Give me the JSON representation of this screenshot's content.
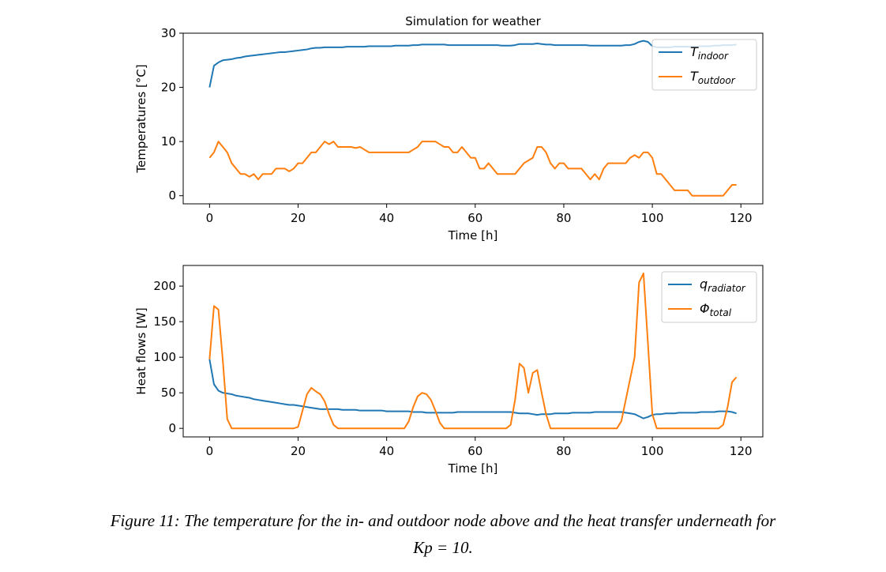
{
  "chart_data": [
    {
      "type": "line",
      "title": "Simulation for weather",
      "xlabel": "Time [h]",
      "ylabel": "Temperatures [°C]",
      "x": [
        0,
        1,
        2,
        3,
        4,
        5,
        6,
        7,
        8,
        9,
        10,
        11,
        12,
        13,
        14,
        15,
        16,
        17,
        18,
        19,
        20,
        21,
        22,
        23,
        24,
        25,
        26,
        27,
        28,
        29,
        30,
        31,
        32,
        33,
        34,
        35,
        36,
        37,
        38,
        39,
        40,
        41,
        42,
        43,
        44,
        45,
        46,
        47,
        48,
        49,
        50,
        51,
        52,
        53,
        54,
        55,
        56,
        57,
        58,
        59,
        60,
        61,
        62,
        63,
        64,
        65,
        66,
        67,
        68,
        69,
        70,
        71,
        72,
        73,
        74,
        75,
        76,
        77,
        78,
        79,
        80,
        81,
        82,
        83,
        84,
        85,
        86,
        87,
        88,
        89,
        90,
        91,
        92,
        93,
        94,
        95,
        96,
        97,
        98,
        99,
        100,
        101,
        102,
        103,
        104,
        105,
        106,
        107,
        108,
        109,
        110,
        111,
        112,
        113,
        114,
        115,
        116,
        117,
        118,
        119
      ],
      "series": [
        {
          "name": "T",
          "subscript": "indoor",
          "color": "#1f77b4",
          "values": [
            20,
            24,
            24.6,
            25,
            25.1,
            25.2,
            25.4,
            25.5,
            25.7,
            25.8,
            25.9,
            26,
            26.1,
            26.2,
            26.3,
            26.4,
            26.5,
            26.5,
            26.6,
            26.7,
            26.8,
            26.9,
            27,
            27.2,
            27.3,
            27.3,
            27.4,
            27.4,
            27.4,
            27.4,
            27.4,
            27.5,
            27.5,
            27.5,
            27.5,
            27.5,
            27.6,
            27.6,
            27.6,
            27.6,
            27.6,
            27.6,
            27.7,
            27.7,
            27.7,
            27.7,
            27.8,
            27.8,
            27.9,
            27.9,
            27.9,
            27.9,
            27.9,
            27.9,
            27.8,
            27.8,
            27.8,
            27.8,
            27.8,
            27.8,
            27.8,
            27.8,
            27.8,
            27.8,
            27.8,
            27.8,
            27.7,
            27.7,
            27.7,
            27.8,
            28,
            28,
            28,
            28,
            28.1,
            28,
            27.9,
            27.9,
            27.8,
            27.8,
            27.8,
            27.8,
            27.8,
            27.8,
            27.8,
            27.8,
            27.7,
            27.7,
            27.7,
            27.7,
            27.7,
            27.7,
            27.7,
            27.7,
            27.8,
            27.8,
            28,
            28.4,
            28.6,
            28.4,
            27.6,
            27.4,
            27.4,
            27.4,
            27.4,
            27.5,
            27.5,
            27.5,
            27.5,
            27.5,
            27.5,
            27.6,
            27.6,
            27.6,
            27.7,
            27.7,
            27.8,
            27.8,
            27.8,
            27.9
          ]
        },
        {
          "name": "T",
          "subscript": "outdoor",
          "color": "#ff7f0e",
          "values": [
            7,
            8,
            10,
            9,
            8,
            6,
            5,
            4,
            4,
            3.5,
            4,
            3,
            4,
            4,
            4,
            5,
            5,
            5,
            4.5,
            5,
            6,
            6,
            7,
            8,
            8,
            9,
            10,
            9.5,
            10,
            9,
            9,
            9,
            9,
            8.8,
            9,
            8.5,
            8,
            8,
            8,
            8,
            8,
            8,
            8,
            8,
            8,
            8,
            8.5,
            9,
            10,
            10,
            10,
            10,
            9.5,
            9,
            9,
            8,
            8,
            9,
            8,
            7,
            7,
            5,
            5,
            6,
            5,
            4,
            4,
            4,
            4,
            4,
            5,
            6,
            6.5,
            7,
            9,
            9,
            8,
            6,
            5,
            6,
            6,
            5,
            5,
            5,
            5,
            4,
            3,
            4,
            3,
            5,
            6,
            6,
            6,
            6,
            6,
            7,
            7.5,
            7,
            8,
            8,
            7,
            4,
            4,
            3,
            2,
            1,
            1,
            1,
            1,
            0,
            0,
            0,
            0,
            0,
            0,
            0,
            0,
            1,
            2,
            2
          ]
        }
      ],
      "xlim": [
        -5.95,
        124.95
      ],
      "xticks": [
        0,
        20,
        40,
        60,
        80,
        100,
        120
      ],
      "ylim": [
        -1.5,
        30
      ],
      "yticks": [
        0,
        10,
        20,
        30
      ],
      "legend": "upper right"
    },
    {
      "type": "line",
      "xlabel": "Time [h]",
      "ylabel": "Heat flows [W]",
      "x": [
        0,
        1,
        2,
        3,
        4,
        5,
        6,
        7,
        8,
        9,
        10,
        11,
        12,
        13,
        14,
        15,
        16,
        17,
        18,
        19,
        20,
        21,
        22,
        23,
        24,
        25,
        26,
        27,
        28,
        29,
        30,
        31,
        32,
        33,
        34,
        35,
        36,
        37,
        38,
        39,
        40,
        41,
        42,
        43,
        44,
        45,
        46,
        47,
        48,
        49,
        50,
        51,
        52,
        53,
        54,
        55,
        56,
        57,
        58,
        59,
        60,
        61,
        62,
        63,
        64,
        65,
        66,
        67,
        68,
        69,
        70,
        71,
        72,
        73,
        74,
        75,
        76,
        77,
        78,
        79,
        80,
        81,
        82,
        83,
        84,
        85,
        86,
        87,
        88,
        89,
        90,
        91,
        92,
        93,
        94,
        95,
        96,
        97,
        98,
        99,
        100,
        101,
        102,
        103,
        104,
        105,
        106,
        107,
        108,
        109,
        110,
        111,
        112,
        113,
        114,
        115,
        116,
        117,
        118,
        119
      ],
      "series": [
        {
          "name": "q",
          "subscript": "radiator",
          "color": "#1f77b4",
          "values": [
            97,
            62,
            53,
            50,
            49,
            48,
            46,
            45,
            44,
            43,
            41,
            40,
            39,
            38,
            37,
            36,
            35,
            34,
            33,
            33,
            32,
            31,
            30,
            29,
            28,
            27,
            27,
            27,
            27,
            27,
            26,
            26,
            26,
            26,
            25,
            25,
            25,
            25,
            25,
            25,
            24,
            24,
            24,
            24,
            24,
            24,
            23,
            23,
            23,
            22,
            22,
            22,
            22,
            22,
            22,
            22,
            23,
            23,
            23,
            23,
            23,
            23,
            23,
            23,
            23,
            23,
            23,
            23,
            23,
            22,
            21,
            21,
            21,
            20,
            19,
            20,
            20,
            20,
            21,
            21,
            21,
            21,
            22,
            22,
            22,
            22,
            22,
            23,
            23,
            23,
            23,
            23,
            23,
            23,
            22,
            21,
            20,
            17,
            14,
            16,
            19,
            20,
            20,
            21,
            21,
            21,
            22,
            22,
            22,
            22,
            22,
            23,
            23,
            23,
            23,
            24,
            24,
            24,
            23,
            21
          ]
        },
        {
          "name": "Φ",
          "subscript": "total",
          "color": "#ff7f0e",
          "values": [
            97,
            172,
            167,
            95,
            13,
            0,
            0,
            0,
            0,
            0,
            0,
            0,
            0,
            0,
            0,
            0,
            0,
            0,
            0,
            0,
            2,
            25,
            48,
            57,
            52,
            48,
            38,
            20,
            5,
            0,
            0,
            0,
            0,
            0,
            0,
            0,
            0,
            0,
            0,
            0,
            0,
            0,
            0,
            0,
            0,
            10,
            30,
            45,
            50,
            48,
            40,
            25,
            8,
            0,
            0,
            0,
            0,
            0,
            0,
            0,
            0,
            0,
            0,
            0,
            0,
            0,
            0,
            0,
            5,
            40,
            91,
            85,
            50,
            78,
            82,
            50,
            20,
            0,
            0,
            0,
            0,
            0,
            0,
            0,
            0,
            0,
            0,
            0,
            0,
            0,
            0,
            0,
            0,
            10,
            40,
            70,
            100,
            205,
            218,
            120,
            20,
            0,
            0,
            0,
            0,
            0,
            0,
            0,
            0,
            0,
            0,
            0,
            0,
            0,
            0,
            0,
            5,
            30,
            65,
            72
          ]
        }
      ],
      "xlim": [
        -5.95,
        124.95
      ],
      "xticks": [
        0,
        20,
        40,
        60,
        80,
        100,
        120
      ],
      "ylim": [
        -12,
        229
      ],
      "yticks": [
        0,
        50,
        100,
        150,
        200
      ],
      "legend": "upper right"
    }
  ],
  "caption": [
    "Figure 11: The temperature for the in- and outdoor node above and the heat transfer underneath for",
    "Kp = 10."
  ]
}
